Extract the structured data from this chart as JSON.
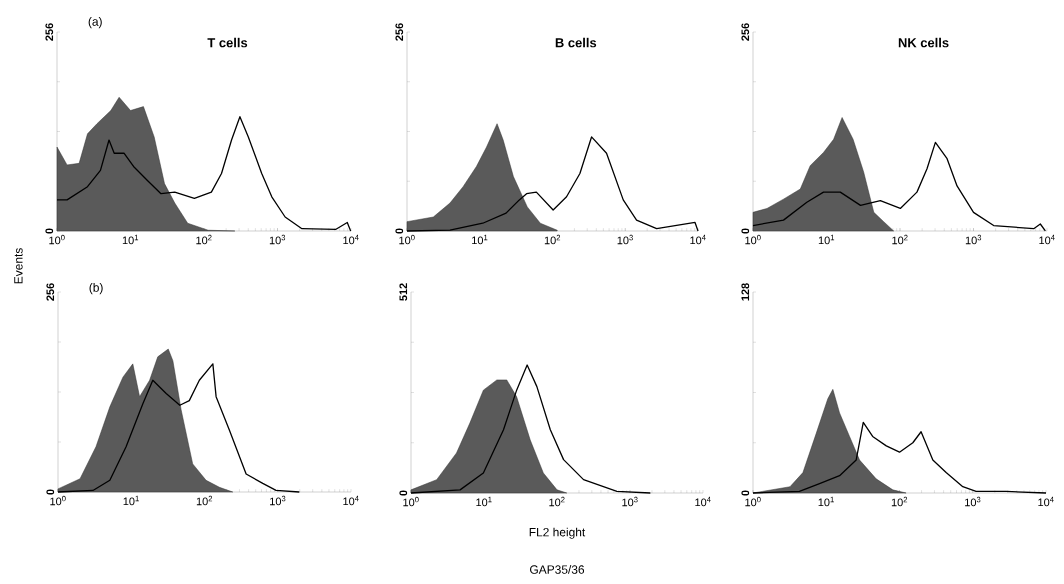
{
  "chart_data": [
    {
      "type": "area",
      "title": "T cells",
      "annotations": [
        "(a)"
      ],
      "log": "x",
      "xlim": [
        1,
        10000
      ],
      "xticks": [
        {
          "value": 1,
          "label": "10$^{0}$"
        },
        {
          "value": 10,
          "label": "10$^{1}$"
        },
        {
          "value": 100,
          "label": "10$^{2}$"
        },
        {
          "value": 1000,
          "label": "10$^{3}$"
        },
        {
          "value": 10000,
          "label": "10$^{4}$"
        }
      ],
      "ylim": [
        0,
        256
      ],
      "yticks": [
        0,
        {
          "value": 64,
          "label": null
        },
        {
          "value": 128,
          "label": null
        },
        {
          "value": 192,
          "label": null
        },
        256
      ],
      "series": [
        {
          "color": "#5a5a5a",
          "x": [
            1,
            1.37,
            2,
            2.6,
            3.5,
            5.4,
            7,
            10,
            15,
            21,
            29,
            40,
            60,
            114,
            263
          ],
          "values": [
            108,
            85,
            87,
            125,
            138,
            155,
            172,
            155,
            160,
            121,
            61,
            36,
            10,
            1,
            0
          ]
        },
        {
          "type": "line",
          "color": "#000000",
          "x": [
            1,
            1.37,
            2.6,
            3.9,
            5.1,
            6,
            8.2,
            11,
            17,
            26,
            40,
            74,
            126,
            173,
            237,
            308,
            401,
            610,
            836,
            1270,
            2150,
            6170,
            8900,
            9900
          ],
          "values": [
            40,
            40,
            57,
            78,
            117,
            100,
            100,
            83,
            65,
            48,
            50,
            42,
            50,
            74,
            117,
            147,
            121,
            74,
            44,
            18,
            3,
            2,
            11,
            0
          ]
        }
      ]
    },
    {
      "type": "area",
      "title": "B cells",
      "log": "x",
      "xlim": [
        1,
        10000
      ],
      "xticks": [
        {
          "value": 1,
          "label": "10$^{0}$"
        },
        {
          "value": 10,
          "label": "10$^{1}$"
        },
        {
          "value": 100,
          "label": "10$^{2}$"
        },
        {
          "value": 1000,
          "label": "10$^{3}$"
        },
        {
          "value": 10000,
          "label": "10$^{4}$"
        }
      ],
      "ylim": [
        0,
        256
      ],
      "yticks": [
        0,
        {
          "value": 64,
          "label": null
        },
        {
          "value": 128,
          "label": null
        },
        {
          "value": 192,
          "label": null
        },
        256
      ],
      "series": [
        {
          "color": "#5a5a5a",
          "x": [
            1,
            2.3,
            3.9,
            5.9,
            9,
            12.4,
            17.3,
            21,
            29,
            45,
            68,
            116
          ],
          "values": [
            12,
            18,
            36,
            57,
            83,
            108,
            138,
            117,
            70,
            31,
            10,
            1
          ]
        },
        {
          "type": "line",
          "color": "#000000",
          "x": [
            1,
            3.9,
            11,
            23,
            35,
            44,
            60,
            102,
            156,
            238,
            344,
            553,
            938,
            1430,
            2700,
            9100,
            10000
          ],
          "values": [
            0,
            1,
            10,
            23,
            40,
            48,
            50,
            27,
            44,
            74,
            121,
            100,
            40,
            14,
            3,
            11,
            0
          ]
        }
      ]
    },
    {
      "type": "area",
      "title": "NK cells",
      "log": "x",
      "xlim": [
        1,
        10000
      ],
      "xticks": [
        {
          "value": 1,
          "label": "10$^{0}$"
        },
        {
          "value": 10,
          "label": "10$^{1}$"
        },
        {
          "value": 100,
          "label": "10$^{2}$"
        },
        {
          "value": 1000,
          "label": "10$^{3}$"
        },
        {
          "value": 10000,
          "label": "10$^{4}$"
        }
      ],
      "ylim": [
        0,
        256
      ],
      "yticks": [
        0,
        {
          "value": 64,
          "label": null
        },
        {
          "value": 128,
          "label": null
        },
        {
          "value": 192,
          "label": null
        },
        256
      ],
      "series": [
        {
          "color": "#5a5a5a",
          "x": [
            1,
            1.55,
            2.6,
            4.4,
            6,
            9.1,
            12.5,
            16.3,
            23,
            32,
            44,
            60,
            82
          ],
          "values": [
            24,
            29,
            41,
            54,
            84,
            101,
            118,
            146,
            118,
            76,
            24,
            12,
            0
          ]
        },
        {
          "type": "line",
          "color": "#000000",
          "x": [
            1,
            2.6,
            5.4,
            9.1,
            15.4,
            29,
            54,
            101,
            170,
            233,
            303,
            437,
            597,
            1000,
            1880,
            6590,
            8110,
            9490
          ],
          "values": [
            7,
            14,
            37,
            50,
            50,
            33,
            39,
            29,
            50,
            80,
            114,
            93,
            58,
            24,
            7,
            3,
            9,
            0
          ]
        }
      ]
    },
    {
      "type": "area",
      "ylabel": "Events",
      "annotations": [
        "(b)"
      ],
      "log": "x",
      "xlim": [
        1,
        10000
      ],
      "xticks": [
        {
          "value": 1,
          "label": "10$^{0}$"
        },
        {
          "value": 10,
          "label": "10$^{1}$"
        },
        {
          "value": 100,
          "label": "10$^{2}$"
        },
        {
          "value": 1000,
          "label": "10$^{3}$"
        },
        {
          "value": 10000,
          "label": "10$^{4}$"
        }
      ],
      "ylim": [
        0,
        256
      ],
      "yticks": [
        0,
        {
          "value": 64,
          "label": null
        },
        {
          "value": 128,
          "label": null
        },
        {
          "value": 192,
          "label": null
        },
        256
      ],
      "series": [
        {
          "color": "#5a5a5a",
          "x": [
            1,
            2,
            3.3,
            5.1,
            7.7,
            10.5,
            13,
            17.8,
            23,
            32,
            37,
            48,
            69,
            105,
            160,
            243
          ],
          "values": [
            4,
            17,
            58,
            109,
            147,
            164,
            122,
            143,
            173,
            183,
            168,
            105,
            36,
            15,
            6,
            0
          ]
        },
        {
          "type": "line",
          "color": "#000000",
          "x": [
            1,
            3,
            5.1,
            8.5,
            14.4,
            19.7,
            30,
            46,
            62,
            85,
            130,
            144,
            219,
            370,
            624,
            948,
            1970
          ],
          "values": [
            0,
            2,
            15,
            58,
            113,
            143,
            126,
            111,
            117,
            143,
            164,
            122,
            79,
            23,
            11,
            2,
            0
          ]
        }
      ]
    },
    {
      "type": "area",
      "xlabel": "FL2 height",
      "annotations": [
        "GAP35/36"
      ],
      "log": "x",
      "xlim": [
        1,
        10000
      ],
      "xticks": [
        {
          "value": 1,
          "label": "10$^{0}$"
        },
        {
          "value": 10,
          "label": "10$^{1}$"
        },
        {
          "value": 100,
          "label": "10$^{2}$"
        },
        {
          "value": 1000,
          "label": "10$^{3}$"
        },
        {
          "value": 10000,
          "label": "10$^{4}$"
        }
      ],
      "ylim": [
        0,
        512
      ],
      "yticks": [
        0,
        {
          "value": 128,
          "label": null
        },
        {
          "value": 256,
          "label": null
        },
        {
          "value": 384,
          "label": null
        },
        512
      ],
      "series": [
        {
          "color": "#5a5a5a",
          "x": [
            1,
            2.25,
            4.2,
            6.4,
            9.8,
            15,
            20.5,
            28,
            43,
            65,
            100,
            136
          ],
          "values": [
            8,
            34,
            102,
            178,
            262,
            288,
            288,
            245,
            135,
            51,
            8,
            0
          ]
        },
        {
          "type": "line",
          "color": "#000000",
          "x": [
            1,
            4.7,
            9.8,
            18.5,
            28,
            39,
            53,
            81,
            123,
            231,
            662,
            1900
          ],
          "values": [
            0,
            8,
            51,
            161,
            262,
            326,
            271,
            161,
            85,
            34,
            4,
            0
          ]
        }
      ]
    },
    {
      "type": "area",
      "log": "x",
      "xlim": [
        1,
        10000
      ],
      "xticks": [
        {
          "value": 1,
          "label": "10$^{0}$"
        },
        {
          "value": 10,
          "label": "10$^{1}$"
        },
        {
          "value": 100,
          "label": "10$^{2}$"
        },
        {
          "value": 1000,
          "label": "10$^{3}$"
        },
        {
          "value": 10000,
          "label": "10$^{4}$"
        }
      ],
      "ylim": [
        0,
        128
      ],
      "yticks": [
        0,
        {
          "value": 32,
          "label": null
        },
        {
          "value": 64,
          "label": null
        },
        {
          "value": 96,
          "label": null
        },
        128
      ],
      "series": [
        {
          "color": "#5a5a5a",
          "x": [
            1,
            3.2,
            4.8,
            7.3,
            10.5,
            12.3,
            15.2,
            20.8,
            28.5,
            48,
            81,
            123
          ],
          "values": [
            0,
            4,
            13,
            38,
            60,
            66,
            51,
            36,
            21,
            9,
            2,
            0
          ]
        },
        {
          "type": "line",
          "color": "#000000",
          "x": [
            1,
            4.3,
            8.1,
            15.2,
            25.6,
            32,
            43,
            66,
            100,
            152,
            197,
            285,
            433,
            731,
            1110,
            2850,
            10000
          ],
          "values": [
            0,
            1,
            6,
            11,
            21,
            45,
            36,
            30,
            26,
            32,
            39,
            21,
            13,
            4,
            1,
            1,
            0
          ]
        }
      ]
    }
  ]
}
